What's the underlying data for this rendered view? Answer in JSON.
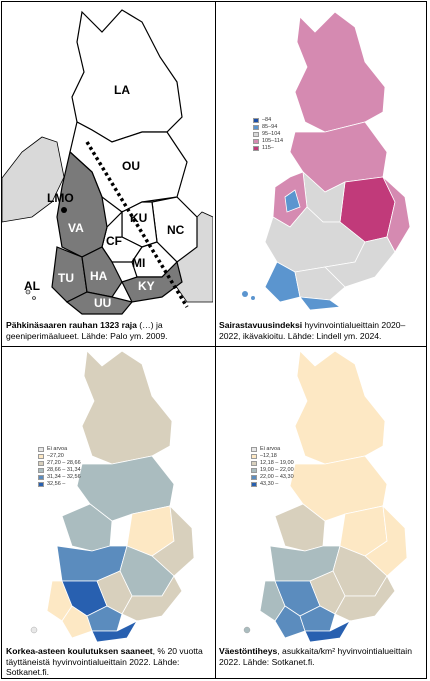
{
  "panels": {
    "top_left": {
      "labels": {
        "la": "LA",
        "ou": "OU",
        "lmo": "LMO",
        "ku": "KU",
        "nc": "NC",
        "va": "VA",
        "cf": "CF",
        "mi": "MI",
        "tu": "TU",
        "ha": "HA",
        "ky": "KY",
        "al": "AL",
        "uu": "UU"
      },
      "caption_bold": "Pähkinäsaaren rauhan 1323 raja",
      "caption_rest": " (…) ja geeniperimäalueet. Lähde: Palo ym. 2009."
    },
    "top_right": {
      "legend": [
        {
          "label": "–84",
          "color": "#1c4fa8"
        },
        {
          "label": "85–94",
          "color": "#5b95cf"
        },
        {
          "label": "95–104",
          "color": "#d8d8d8"
        },
        {
          "label": "105–114",
          "color": "#d58ab1"
        },
        {
          "label": "115–",
          "color": "#c13a7a"
        }
      ],
      "caption_bold": "Sairastavuusindeksi",
      "caption_rest": " hyvinvointialueittain 2020–2022, ikävakioitu. Lähde: Lindell ym. 2024."
    },
    "bottom_left": {
      "legend": [
        {
          "label": "Ei arvoa",
          "color": "#e8e8e8"
        },
        {
          "label": "–27,20",
          "color": "#fde8c4"
        },
        {
          "label": "27,20 – 28,66",
          "color": "#d8d0bd"
        },
        {
          "label": "28,66 – 31,34",
          "color": "#aabcbf"
        },
        {
          "label": "31,34 – 32,56",
          "color": "#5b8cbe"
        },
        {
          "label": "32,56 –",
          "color": "#2860b0"
        }
      ],
      "caption_bold": "Korkea-asteen koulutuksen saaneet",
      "caption_rest": ", % 20 vuotta täyttäneistä hyvinvointialueittain 2022. Lähde: Sotkanet.fi."
    },
    "bottom_right": {
      "legend": [
        {
          "label": "Ei arvoa",
          "color": "#e8e8e8"
        },
        {
          "label": "–12,18",
          "color": "#fde8c4"
        },
        {
          "label": "12,18 – 19,00",
          "color": "#d8d0bd"
        },
        {
          "label": "19,00 – 22,00",
          "color": "#aabcbf"
        },
        {
          "label": "22,00 – 43,30",
          "color": "#5b8cbe"
        },
        {
          "label": "43,30 –",
          "color": "#2860b0"
        }
      ],
      "caption_bold": "Väestöntiheys",
      "caption_rest": ", asukkaita/km² hyvinvointialueittain 2022. Lähde: Sotkanet.fi."
    }
  }
}
